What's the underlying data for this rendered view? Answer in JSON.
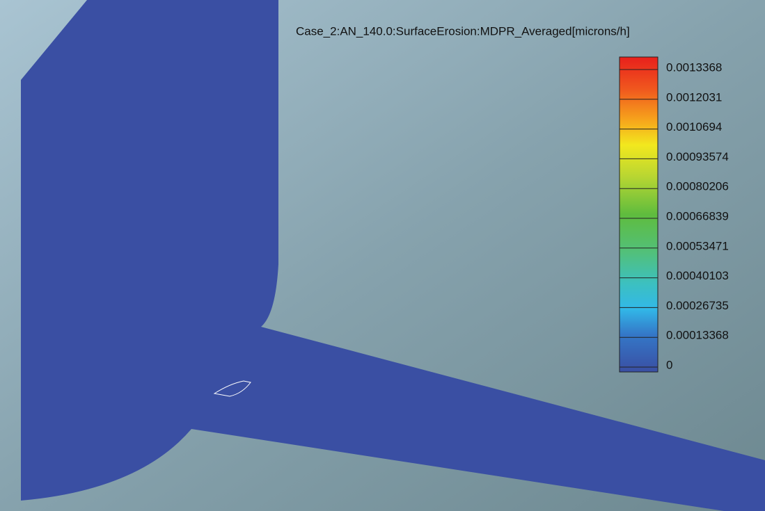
{
  "legend": {
    "title": "Case_2:AN_140.0:SurfaceErosion:MDPR_Averaged[microns/h]",
    "labels": [
      "0.0013368",
      "0.0012031",
      "0.0010694",
      "0.00093574",
      "0.00080206",
      "0.00066839",
      "0.00053471",
      "0.00040103",
      "0.00026735",
      "0.00013368",
      "0"
    ]
  }
}
